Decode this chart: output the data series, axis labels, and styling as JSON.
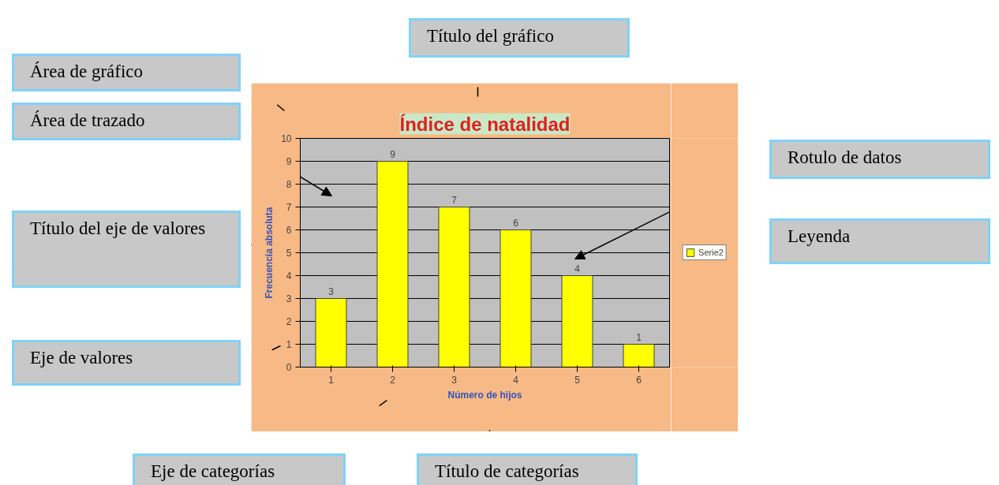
{
  "chart_data": {
    "type": "bar",
    "title": "Índice de natalidad",
    "xlabel": "Número de hijos",
    "ylabel": "Frecuencia absoluta",
    "categories": [
      "1",
      "2",
      "3",
      "4",
      "5",
      "6"
    ],
    "series": [
      {
        "name": "Serie2",
        "color": "#ffff00",
        "values": [
          3,
          9,
          7,
          6,
          4,
          1
        ]
      }
    ],
    "ylim": [
      0,
      10
    ],
    "yticks": [
      0,
      1,
      2,
      3,
      4,
      5,
      6,
      7,
      8,
      9,
      10
    ],
    "grid": "y",
    "legend": "right",
    "data_labels": true,
    "annotations": [
      "Título del gráfico",
      "Área de gráfico",
      "Área de trazado",
      "Rotulo de datos",
      "Título del eje de valores",
      "Leyenda",
      "Eje de valores",
      "Eje de categorías",
      "Título de categorías"
    ]
  }
}
